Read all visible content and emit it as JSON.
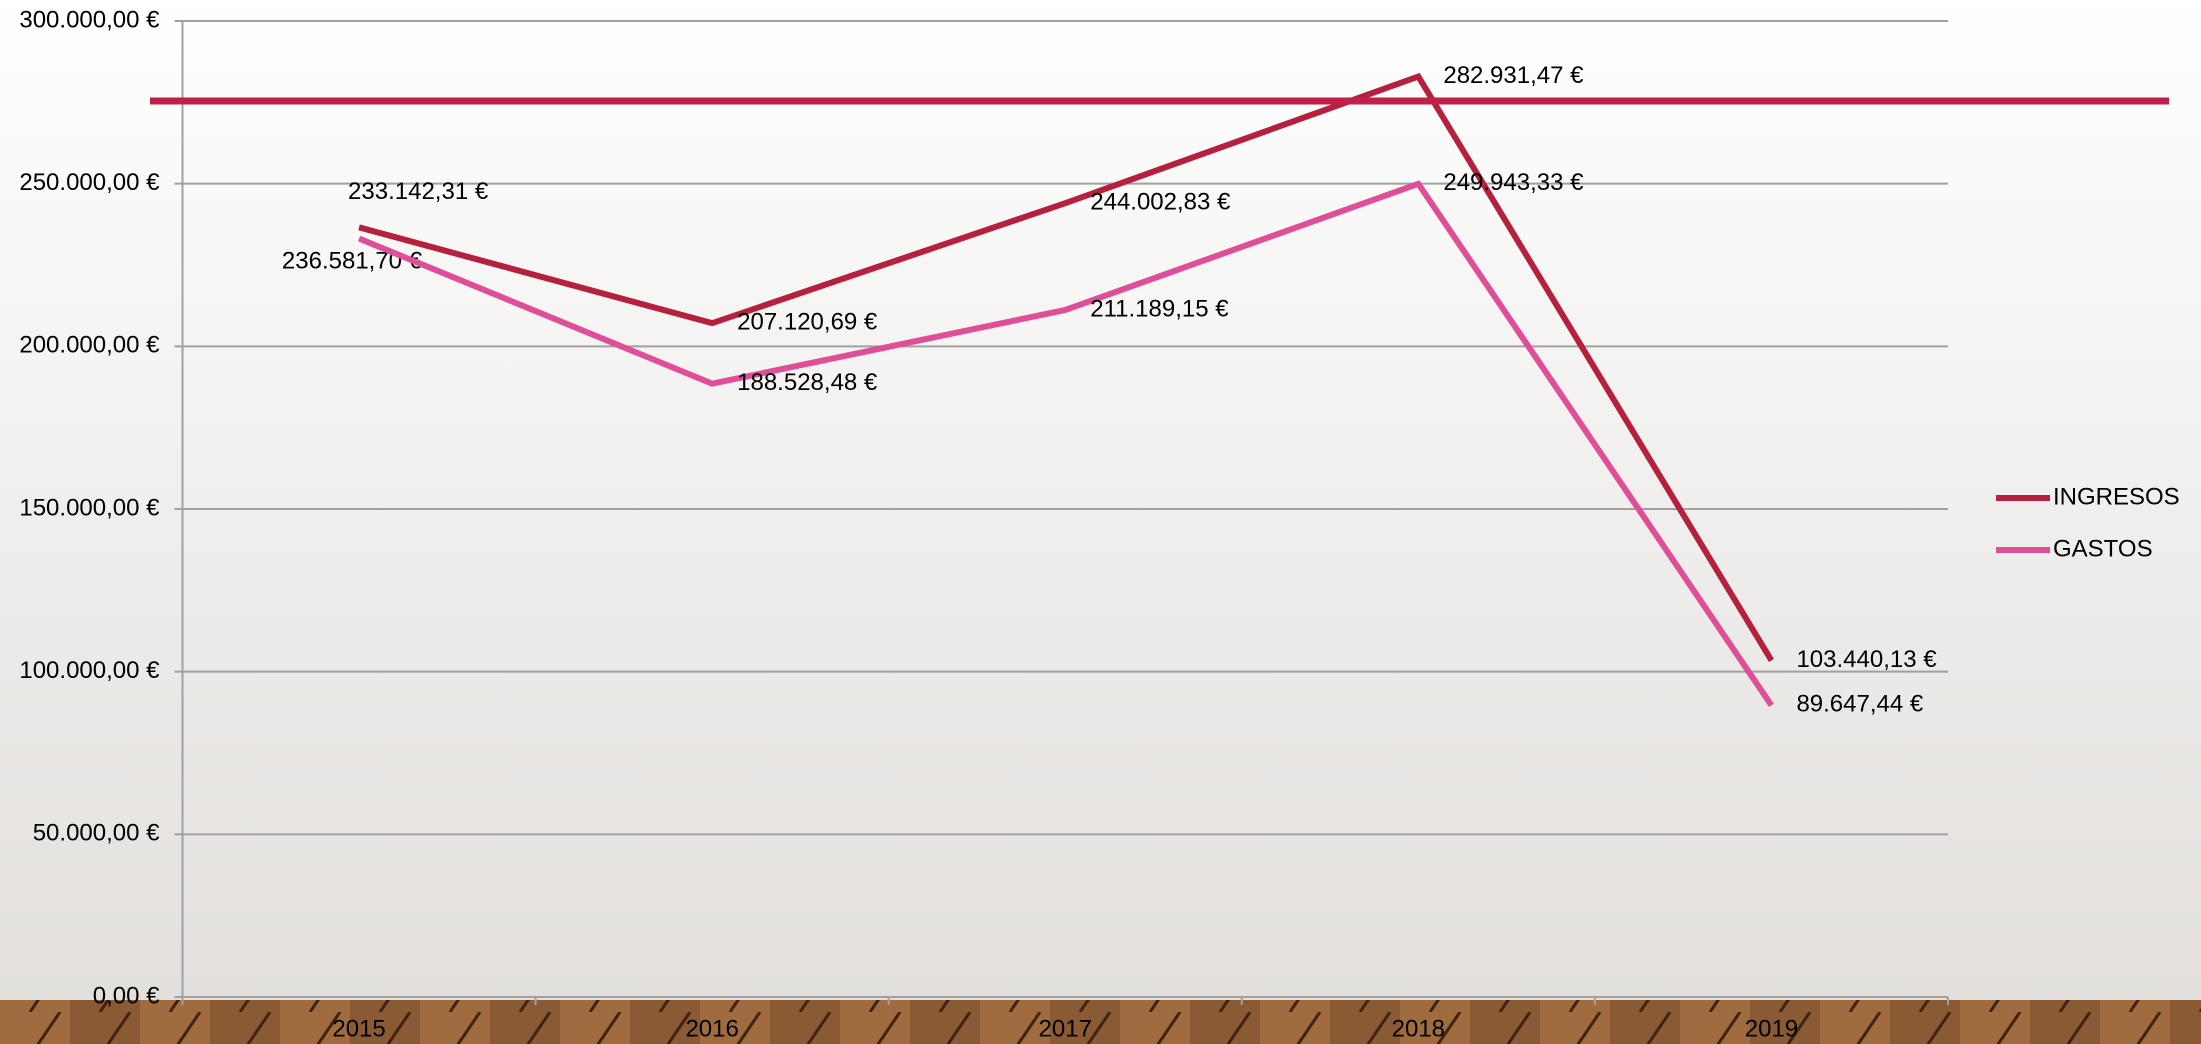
{
  "chart_data": {
    "type": "line",
    "categories": [
      "2015",
      "2016",
      "2017",
      "2018",
      "2019"
    ],
    "series": [
      {
        "name": "INGRESOS",
        "color": "#b5203f",
        "values": [
          236581.7,
          207120.69,
          244002.83,
          282931.47,
          103440.13
        ],
        "value_labels": [
          "236.581,70 €",
          "207.120,69 €",
          "244.002,83 €",
          "282.931,47 €",
          "103.440,13 €"
        ]
      },
      {
        "name": "GASTOS",
        "color": "#df4f98",
        "values": [
          233142.31,
          188528.48,
          211189.15,
          249943.33,
          89647.44
        ],
        "value_labels": [
          "233.142,31 €",
          "188.528,48 €",
          "211.189,15 €",
          "249.943,33 €",
          "89.647,44 €"
        ]
      }
    ],
    "ylim": [
      0,
      300000
    ],
    "yticks": [
      {
        "value": 0,
        "label": "0,00 €"
      },
      {
        "value": 50000,
        "label": "50.000,00 €"
      },
      {
        "value": 100000,
        "label": "100.000,00 €"
      },
      {
        "value": 150000,
        "label": "150.000,00 €"
      },
      {
        "value": 200000,
        "label": "200.000,00 €"
      },
      {
        "value": 250000,
        "label": "250.000,00 €"
      },
      {
        "value": 300000,
        "label": "300.000,00 €"
      }
    ],
    "grid": true,
    "legend": "right"
  }
}
